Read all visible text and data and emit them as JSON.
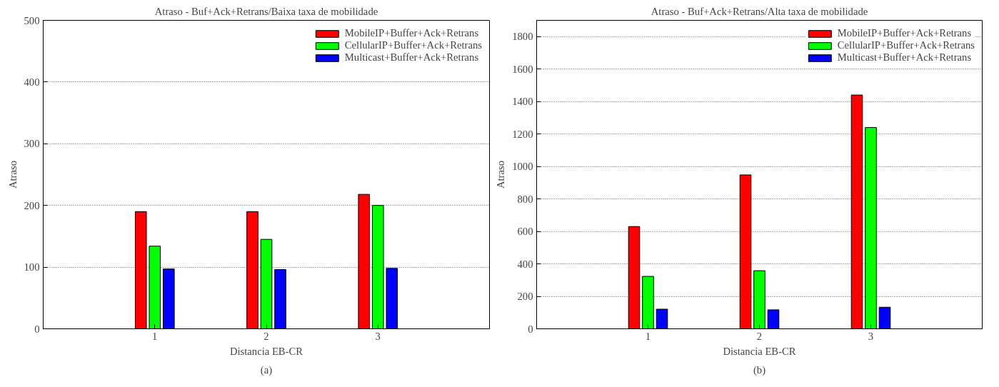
{
  "chart_data": [
    {
      "type": "bar",
      "title": "Atraso - Buf+Ack+Retrans/Baixa taxa de mobilidade",
      "xlabel": "Distancia EB-CR",
      "ylabel": "Atraso",
      "x": [
        1,
        2,
        3
      ],
      "xlim": [
        0,
        4
      ],
      "xticks": [
        1,
        2,
        3
      ],
      "ylim": [
        0,
        500
      ],
      "yticks": [
        0,
        100,
        200,
        300,
        400,
        500
      ],
      "grid": "y",
      "legend": "top right",
      "series": [
        {
          "name": "MobileIP+Buffer+Ack+Retrans",
          "color": "#ff0000",
          "values": [
            190,
            190,
            218
          ]
        },
        {
          "name": "CellularIP+Buffer+Ack+Retrans",
          "color": "#00ff00",
          "values": [
            134,
            145,
            200
          ]
        },
        {
          "name": "Multicast+Buffer+Ack+Retrans",
          "color": "#0000ff",
          "values": [
            97,
            96,
            98
          ]
        }
      ],
      "annotations": [
        "(a)"
      ]
    },
    {
      "type": "bar",
      "title": "Atraso - Buf+Ack+Retrans/Alta taxa de mobilidade",
      "xlabel": "Distancia EB-CR",
      "ylabel": "Atraso",
      "x": [
        1,
        2,
        3
      ],
      "xlim": [
        0,
        4
      ],
      "xticks": [
        1,
        2,
        3
      ],
      "ylim": [
        0,
        1900
      ],
      "yticks": [
        0,
        200,
        400,
        600,
        800,
        1000,
        1200,
        1400,
        1600,
        1800
      ],
      "grid": "y",
      "legend": "top right",
      "series": [
        {
          "name": "MobileIP+Buffer+Ack+Retrans",
          "color": "#ff0000",
          "values": [
            630,
            948,
            1440
          ]
        },
        {
          "name": "CellularIP+Buffer+Ack+Retrans",
          "color": "#00ff00",
          "values": [
            323,
            358,
            1240
          ]
        },
        {
          "name": "Multicast+Buffer+Ack+Retrans",
          "color": "#0000ff",
          "values": [
            121,
            117,
            133
          ]
        }
      ],
      "annotations": [
        "(b)"
      ]
    }
  ]
}
